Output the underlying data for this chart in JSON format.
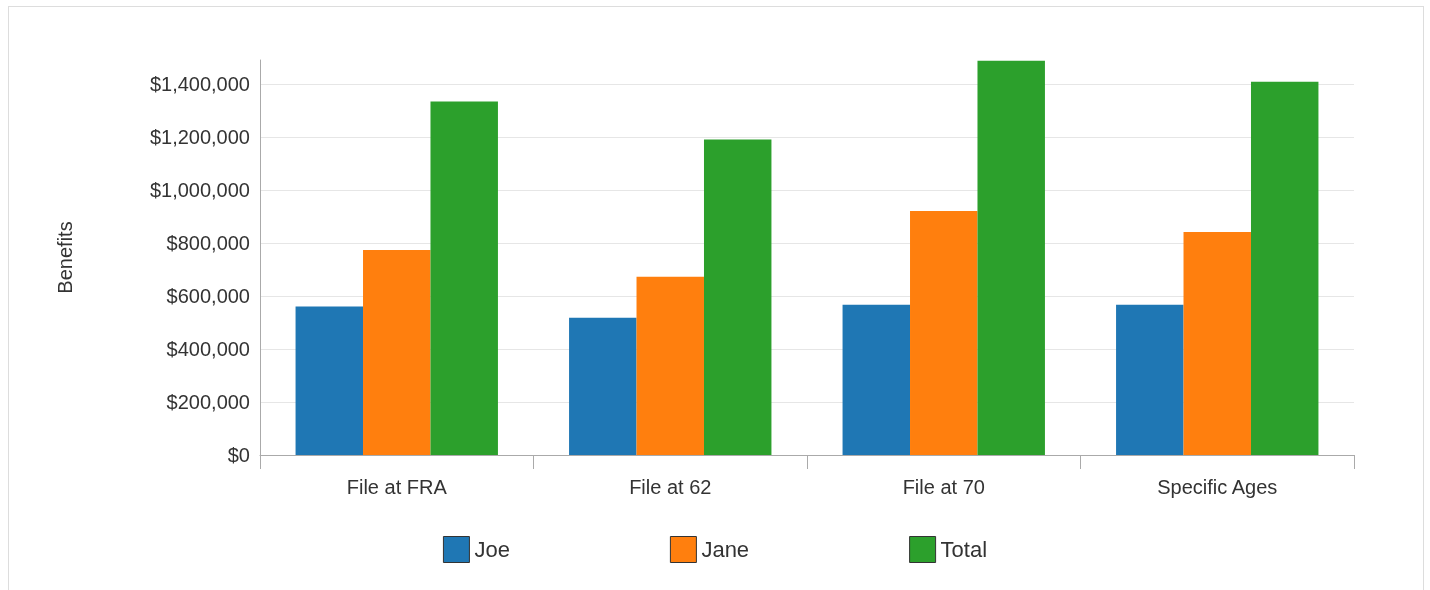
{
  "chart_data": {
    "type": "bar",
    "ylabel": "Benefits",
    "categories": [
      "File at FRA",
      "File at 62",
      "File at 70",
      "Specific Ages"
    ],
    "series": [
      {
        "name": "Joe",
        "color": "#1f77b4",
        "values": [
          560000,
          518000,
          567000,
          567000
        ]
      },
      {
        "name": "Jane",
        "color": "#ff7f0e",
        "values": [
          773000,
          672000,
          920000,
          841000
        ]
      },
      {
        "name": "Total",
        "color": "#2ca02c",
        "values": [
          1333000,
          1190000,
          1487000,
          1408000
        ]
      }
    ],
    "ylim": [
      0,
      1490000
    ],
    "yticks": [
      {
        "value": 0,
        "label": "$0"
      },
      {
        "value": 200000,
        "label": "$200,000"
      },
      {
        "value": 400000,
        "label": "$400,000"
      },
      {
        "value": 600000,
        "label": "$600,000"
      },
      {
        "value": 800000,
        "label": "$800,000"
      },
      {
        "value": 1000000,
        "label": "$1,000,000"
      },
      {
        "value": 1200000,
        "label": "$1,200,000"
      },
      {
        "value": 1400000,
        "label": "$1,400,000"
      }
    ],
    "grid": "y",
    "legend": "bottom"
  }
}
